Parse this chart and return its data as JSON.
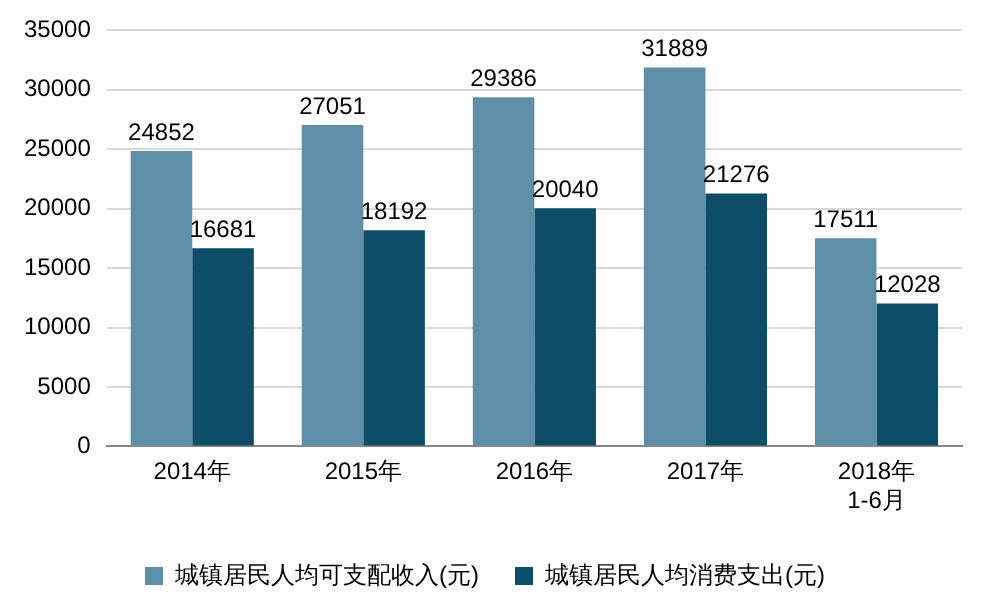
{
  "chart_data": {
    "type": "bar",
    "categories": [
      "2014年",
      "2015年",
      "2016年",
      "2017年",
      "2018年\n1-6月"
    ],
    "series": [
      {
        "name": "城镇居民人均可支配收入(元)",
        "color": "#5e8fa6",
        "values": [
          24852,
          27051,
          29386,
          31889,
          17511
        ]
      },
      {
        "name": "城镇居民人均消费支出(元)",
        "color": "#0e4d68",
        "values": [
          16681,
          18192,
          20040,
          21276,
          12028
        ]
      }
    ],
    "ylim": [
      0,
      35000
    ],
    "yticks": [
      0,
      5000,
      10000,
      15000,
      20000,
      25000,
      30000,
      35000
    ],
    "grid": "y",
    "legend": "bottom",
    "data_labels": true
  }
}
